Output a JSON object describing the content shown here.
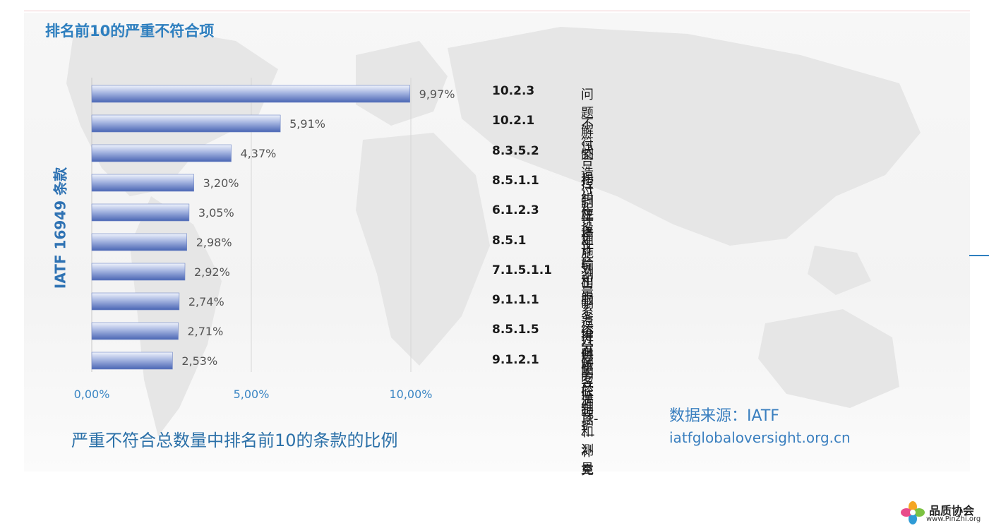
{
  "header": {
    "title": "排名前10的严重不符合项"
  },
  "chart_data": {
    "type": "bar",
    "orientation": "horizontal",
    "ylabel": "IATF 16949 条款",
    "xlabel": "严重不符合总数量中排名前10的条款的比例",
    "xlim": [
      0,
      10
    ],
    "x_ticks": [
      "0,00%",
      "5,00%",
      "10,00%"
    ],
    "grid": "vertical",
    "categories": [
      "10.2.3",
      "10.2.1",
      "8.3.5.2",
      "8.5.1.1",
      "6.1.2.3",
      "8.5.1",
      "7.1.5.1.1",
      "9.1.1.1",
      "8.5.1.5",
      "9.1.2.1"
    ],
    "values": [
      9.97,
      5.91,
      4.37,
      3.2,
      3.05,
      2.98,
      2.92,
      2.74,
      2.71,
      2.53
    ],
    "value_labels": [
      "9,97%",
      "5,91%",
      "4,37%",
      "3,20%",
      "3,05%",
      "2,98%",
      "2,92%",
      "2,74%",
      "2,71%",
      "2,53%"
    ],
    "bar_color": "#5a76c0"
  },
  "clauses": [
    {
      "id": "10.2.3",
      "name": "问题解决"
    },
    {
      "id": "10.2.1",
      "name": "不符合和纠正措施"
    },
    {
      "id": "8.3.5.2",
      "name": "制造过程设计输出"
    },
    {
      "id": "8.5.1.1",
      "name": "控制计划"
    },
    {
      "id": "6.1.2.3",
      "name": "应急计划"
    },
    {
      "id": "8.5.1",
      "name": "生产和服务提供的控制"
    },
    {
      "id": "7.1.5.1.1",
      "name": "测量系统分析"
    },
    {
      "id": "9.1.1.1",
      "name": "制造过程的监视和测量"
    },
    {
      "id": "8.5.1.5",
      "name": "全面生产维护"
    },
    {
      "id": "9.1.2.1",
      "name": "顾客满意----补充"
    }
  ],
  "source": {
    "label": "数据来源：IATF",
    "url": "iatfglobaloversight.org.cn"
  },
  "logo": {
    "name": "品质协会",
    "url": "www.PinZhi.org"
  },
  "colors": {
    "accent": "#2e7fbf",
    "bar": "#5a76c0"
  },
  "icons": {
    "logo": "flower-petals-icon"
  }
}
